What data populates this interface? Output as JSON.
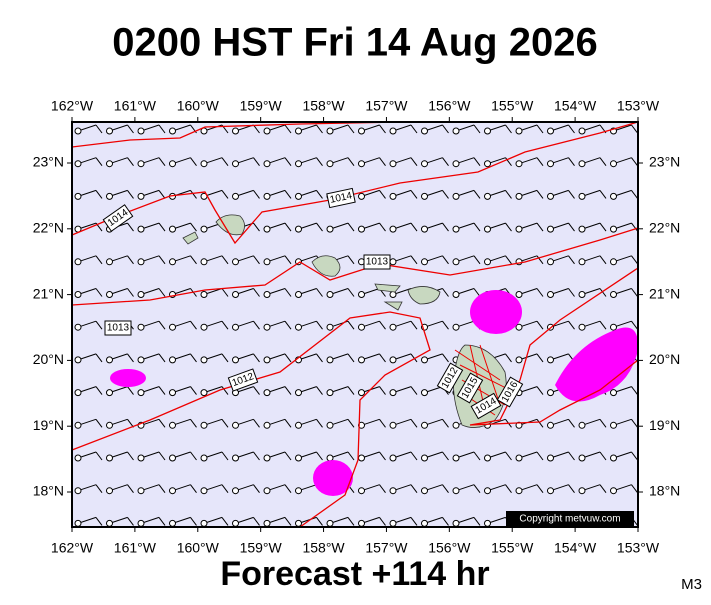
{
  "header": {
    "title": "0200 HST Fri 14 Aug 2026"
  },
  "map": {
    "lon_labels": [
      "162°W",
      "161°W",
      "160°W",
      "159°W",
      "158°W",
      "157°W",
      "156°W",
      "155°W",
      "154°W",
      "153°W"
    ],
    "lat_labels": [
      "23°N",
      "22°N",
      "21°N",
      "20°N",
      "19°N",
      "18°N"
    ],
    "isobar_labels": [
      "1014",
      "1014",
      "1013",
      "1013",
      "1012",
      "1012",
      "1015",
      "1014",
      "1016"
    ],
    "copyright": "Copyright metvuw.com"
  },
  "footer": {
    "forecast": "Forecast +114 hr",
    "code": "M3"
  }
}
